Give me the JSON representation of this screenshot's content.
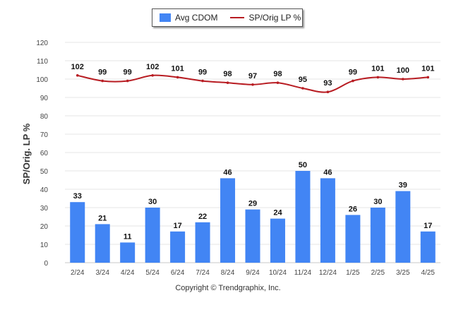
{
  "chart_data": {
    "type": "bar",
    "categories": [
      "2/24",
      "3/24",
      "4/24",
      "5/24",
      "6/24",
      "7/24",
      "8/24",
      "9/24",
      "10/24",
      "11/24",
      "12/24",
      "1/25",
      "2/25",
      "3/25",
      "4/25"
    ],
    "series": [
      {
        "name": "Avg CDOM",
        "kind": "bar",
        "color": "#4285f4",
        "values": [
          33,
          21,
          11,
          30,
          17,
          22,
          46,
          29,
          24,
          50,
          46,
          26,
          30,
          39,
          17
        ]
      },
      {
        "name": "SP/Orig LP %",
        "kind": "line",
        "color": "#b81c22",
        "values": [
          102,
          99,
          99,
          102,
          101,
          99,
          98,
          97,
          98,
          95,
          93,
          99,
          101,
          100,
          101
        ]
      }
    ],
    "title": "",
    "xlabel": "",
    "ylabel": "SP/Orig. LP %",
    "ylim": [
      0,
      120
    ],
    "yticks": [
      0,
      10,
      20,
      30,
      40,
      50,
      60,
      70,
      80,
      90,
      100,
      110,
      120
    ],
    "grid": true,
    "legend": "top-center"
  },
  "legend": {
    "bar_label": "Avg CDOM",
    "line_label": "SP/Orig LP %"
  },
  "footer": {
    "copyright": "Copyright © Trendgraphix, Inc."
  }
}
